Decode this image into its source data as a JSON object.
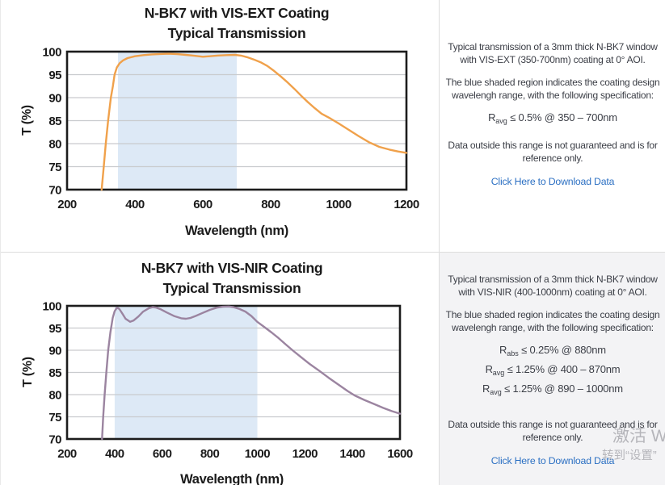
{
  "colors": {
    "vis_ext_curve": "#f0a14b",
    "vis_nir_curve": "#9b84a0",
    "shaded_band": "#dde9f6",
    "gridline": "#c9cbce",
    "axis_border": "#1c1c1c",
    "link": "#2c70c3",
    "info_text": "#3b3e46",
    "row2_panel_bg": "#f3f3f5",
    "divider": "#dddddd"
  },
  "chart_data": [
    {
      "type": "line",
      "title": "N-BK7 with VIS-EXT Coating",
      "subtitle": "Typical Transmission",
      "xlabel": "Wavelength (nm)",
      "ylabel": "T (%)",
      "xlim": [
        200,
        1200
      ],
      "ylim": [
        70,
        100
      ],
      "xticks": [
        200,
        400,
        600,
        800,
        1000,
        1200
      ],
      "yticks": [
        70,
        75,
        80,
        85,
        90,
        95,
        100
      ],
      "grid": true,
      "legend": "none",
      "shaded_region": {
        "x_start": 350,
        "x_end": 700,
        "color": "#dde9f6"
      },
      "series": [
        {
          "name": "vis-ext-transmission-curve",
          "color": "#f0a14b",
          "x": [
            302,
            308,
            314,
            321,
            329,
            335,
            340,
            347,
            355,
            365,
            378,
            400,
            425,
            450,
            475,
            500,
            525,
            550,
            575,
            600,
            620,
            645,
            670,
            695,
            715,
            730,
            750,
            770,
            790,
            810,
            830,
            850,
            870,
            890,
            910,
            930,
            950,
            975,
            1000,
            1030,
            1060,
            1090,
            1120,
            1150,
            1175,
            1200
          ],
          "y": [
            70,
            75,
            80,
            85,
            90,
            92.5,
            95,
            96.6,
            97.5,
            98.1,
            98.6,
            99.0,
            99.25,
            99.4,
            99.5,
            99.55,
            99.45,
            99.3,
            99.1,
            98.9,
            99.0,
            99.15,
            99.25,
            99.3,
            99.1,
            98.8,
            98.3,
            97.7,
            96.9,
            95.8,
            94.6,
            93.3,
            91.9,
            90.4,
            89.0,
            87.7,
            86.5,
            85.5,
            84.4,
            83.0,
            81.6,
            80.3,
            79.3,
            78.7,
            78.3,
            78.0
          ]
        }
      ]
    },
    {
      "type": "line",
      "title": "N-BK7 with VIS-NIR Coating",
      "subtitle": "Typical Transmission",
      "xlabel": "Wavelength (nm)",
      "ylabel": "T (%)",
      "xlim": [
        200,
        1600
      ],
      "ylim": [
        70,
        100
      ],
      "xticks": [
        200,
        400,
        600,
        800,
        1000,
        1200,
        1400,
        1600
      ],
      "yticks": [
        70,
        75,
        80,
        85,
        90,
        95,
        100
      ],
      "grid": true,
      "legend": "none",
      "shaded_region": {
        "x_start": 400,
        "x_end": 1000,
        "color": "#dde9f6"
      },
      "series": [
        {
          "name": "vis-nir-transmission-curve",
          "color": "#9b84a0",
          "x": [
            347,
            352,
            358,
            365,
            373,
            382,
            392,
            400,
            410,
            420,
            432,
            446,
            465,
            480,
            500,
            520,
            545,
            560,
            575,
            595,
            620,
            650,
            680,
            700,
            720,
            740,
            770,
            800,
            830,
            855,
            880,
            900,
            925,
            950,
            975,
            1000,
            1030,
            1060,
            1090,
            1120,
            1150,
            1185,
            1220,
            1260,
            1300,
            1340,
            1380,
            1410,
            1450,
            1490,
            1530,
            1565,
            1600
          ],
          "y": [
            70,
            75,
            80,
            85,
            90,
            94,
            97.3,
            98.8,
            99.6,
            99.3,
            98.3,
            97.1,
            96.4,
            96.7,
            97.6,
            98.7,
            99.5,
            99.7,
            99.6,
            99.2,
            98.5,
            97.7,
            97.2,
            97.1,
            97.3,
            97.7,
            98.4,
            99.1,
            99.6,
            99.8,
            99.85,
            99.7,
            99.3,
            98.7,
            97.7,
            96.4,
            95.2,
            94.0,
            92.7,
            91.3,
            89.9,
            88.4,
            86.9,
            85.4,
            83.8,
            82.3,
            80.8,
            79.8,
            78.8,
            77.9,
            77.0,
            76.3,
            75.7
          ]
        }
      ]
    }
  ],
  "rows": [
    {
      "info": {
        "p1": "Typical transmission of a 3mm thick N-BK7 window with VIS-EXT (350-700nm) coating at 0° AOI.",
        "p2": "The blue shaded region indicates the coating design wavelengh range, with the following specification:",
        "specs": [
          {
            "base": "R",
            "sub": "avg",
            "rest": " ≤ 0.5% @ 350 – 700nm"
          }
        ],
        "note": "Data outside this range is not guaranteed and is for reference only.",
        "link": "Click Here to Download Data"
      }
    },
    {
      "info": {
        "p1": "Typical transmission of a 3mm thick N-BK7 window with VIS-NIR (400-1000nm) coating at 0° AOI.",
        "p2": "The blue shaded region indicates the coating design wavelengh range, with the following specification:",
        "specs": [
          {
            "base": "R",
            "sub": "abs",
            "rest": " ≤ 0.25% @ 880nm"
          },
          {
            "base": "R",
            "sub": "avg",
            "rest": " ≤ 1.25% @ 400 – 870nm"
          },
          {
            "base": "R",
            "sub": "avg",
            "rest": " ≤ 1.25% @ 890 – 1000nm"
          }
        ],
        "note": "Data outside this range is not guaranteed and is for reference only.",
        "link": "Click Here to Download Data"
      }
    }
  ],
  "watermark": {
    "line1": "激活 W",
    "line2": "转到“设置”"
  }
}
